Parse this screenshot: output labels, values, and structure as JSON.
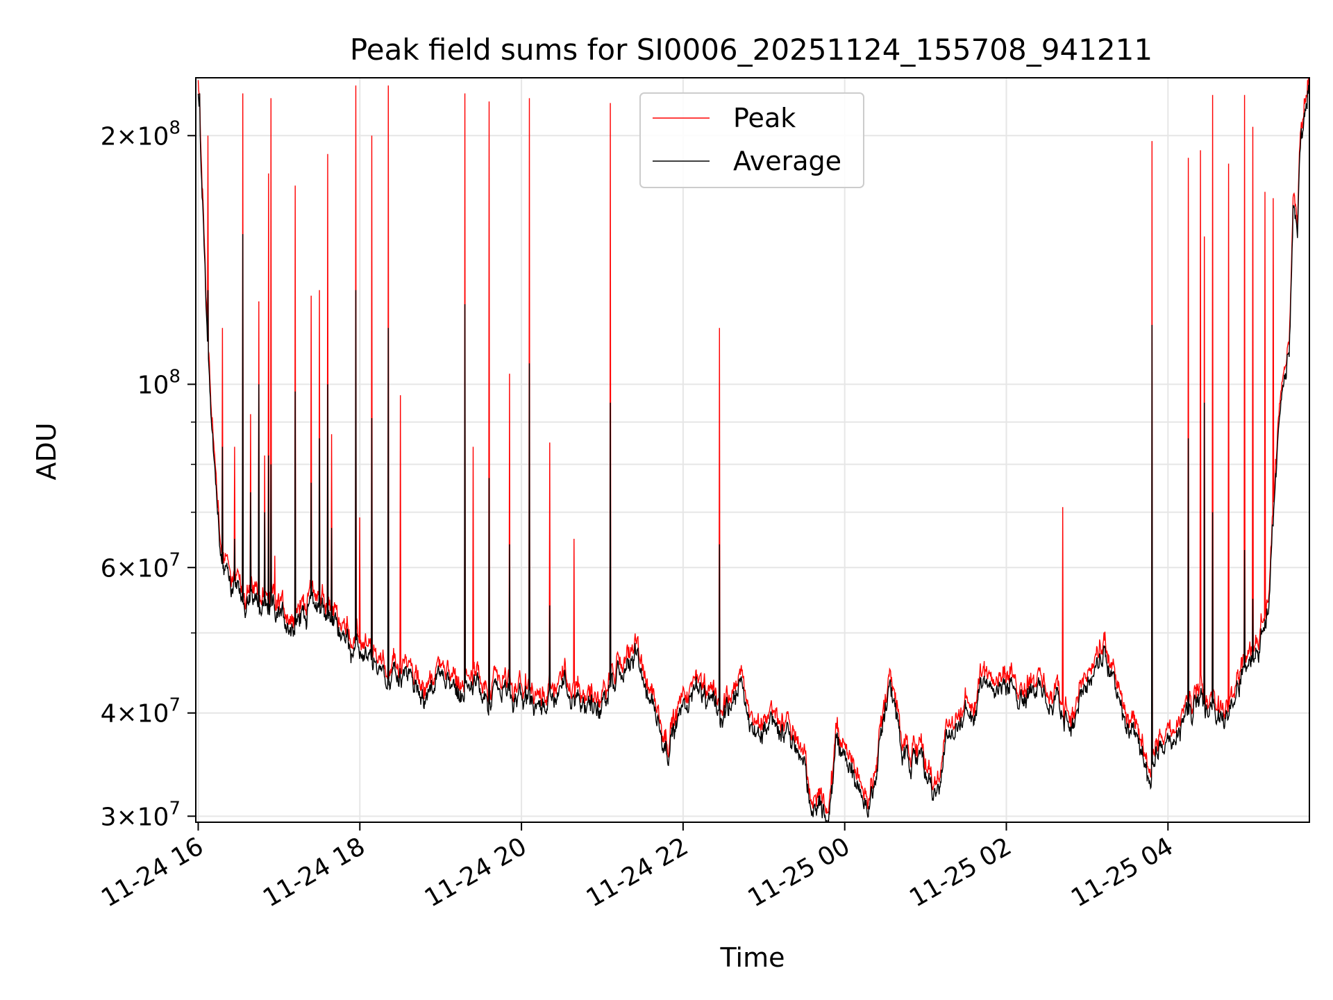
{
  "chart_data": {
    "type": "line",
    "title": "Peak field sums for SI0006_20251124_155708_941211",
    "xlabel": "Time",
    "ylabel": "ADU",
    "yscale": "log",
    "ylim": [
      29500000,
      235000000
    ],
    "xlim_hours": [
      -0.03,
      13.75
    ],
    "x_unit": "hours since 11-24 16:00",
    "grid": true,
    "legend_position": "upper center",
    "x_ticks": [
      {
        "hour": 0,
        "label": "11-24 16"
      },
      {
        "hour": 2,
        "label": "11-24 18"
      },
      {
        "hour": 4,
        "label": "11-24 20"
      },
      {
        "hour": 6,
        "label": "11-24 22"
      },
      {
        "hour": 8,
        "label": "11-25 00"
      },
      {
        "hour": 10,
        "label": "11-25 02"
      },
      {
        "hour": 12,
        "label": "11-25 04"
      }
    ],
    "y_ticks": [
      {
        "value": 30000000,
        "mantissa": "3",
        "exponent": "7"
      },
      {
        "value": 40000000,
        "mantissa": "4",
        "exponent": "7"
      },
      {
        "value": 60000000,
        "mantissa": "6",
        "exponent": "7"
      },
      {
        "value": 100000000,
        "mantissa": "",
        "exponent": "8"
      },
      {
        "value": 200000000,
        "mantissa": "2",
        "exponent": "8"
      }
    ],
    "y_minor_ticks": [
      50000000,
      70000000,
      80000000,
      90000000
    ],
    "colors": {
      "peak": "#ff0000",
      "average": "#000000"
    },
    "series": [
      {
        "name": "Peak",
        "color": "#ff0000",
        "baseline": [
          [
            0.0,
            230000000
          ],
          [
            0.05,
            175000000
          ],
          [
            0.12,
            110000000
          ],
          [
            0.2,
            82000000
          ],
          [
            0.3,
            62000000
          ],
          [
            0.5,
            56000000
          ],
          [
            0.8,
            55000000
          ],
          [
            1.0,
            53000000
          ],
          [
            1.2,
            52500000
          ],
          [
            1.4,
            56000000
          ],
          [
            1.6,
            54000000
          ],
          [
            1.8,
            50000000
          ],
          [
            2.0,
            47500000
          ],
          [
            2.3,
            45500000
          ],
          [
            2.6,
            45000000
          ],
          [
            2.8,
            43000000
          ],
          [
            3.0,
            45000000
          ],
          [
            3.3,
            43500000
          ],
          [
            3.6,
            43000000
          ],
          [
            3.9,
            42500000
          ],
          [
            4.2,
            41500000
          ],
          [
            4.5,
            44000000
          ],
          [
            4.8,
            42500000
          ],
          [
            5.0,
            42000000
          ],
          [
            5.2,
            45000000
          ],
          [
            5.4,
            47500000
          ],
          [
            5.6,
            43000000
          ],
          [
            5.8,
            37000000
          ],
          [
            6.0,
            41500000
          ],
          [
            6.2,
            45000000
          ],
          [
            6.3,
            40500000
          ],
          [
            6.5,
            41000000
          ],
          [
            6.7,
            44000000
          ],
          [
            6.9,
            38000000
          ],
          [
            7.1,
            40500000
          ],
          [
            7.3,
            38000000
          ],
          [
            7.5,
            35000000
          ],
          [
            7.6,
            30200000
          ],
          [
            7.7,
            32500000
          ],
          [
            7.8,
            30000000
          ],
          [
            7.9,
            38000000
          ],
          [
            8.0,
            36000000
          ],
          [
            8.1,
            34000000
          ],
          [
            8.3,
            32500000
          ],
          [
            8.4,
            35000000
          ],
          [
            8.55,
            44500000
          ],
          [
            8.7,
            37000000
          ],
          [
            8.8,
            34000000
          ],
          [
            8.95,
            37500000
          ],
          [
            9.1,
            32000000
          ],
          [
            9.3,
            39000000
          ],
          [
            9.5,
            41000000
          ],
          [
            9.6,
            39000000
          ],
          [
            9.7,
            44500000
          ],
          [
            9.8,
            46000000
          ],
          [
            10.0,
            44000000
          ],
          [
            10.3,
            43500000
          ],
          [
            10.6,
            41500000
          ],
          [
            10.8,
            39500000
          ],
          [
            11.0,
            43500000
          ],
          [
            11.2,
            48500000
          ],
          [
            11.4,
            42000000
          ],
          [
            11.6,
            37000000
          ],
          [
            11.75,
            34500000
          ],
          [
            11.9,
            37500000
          ],
          [
            12.1,
            38500000
          ],
          [
            12.3,
            41000000
          ],
          [
            12.5,
            42000000
          ],
          [
            12.7,
            41000000
          ],
          [
            12.9,
            45000000
          ],
          [
            13.1,
            49000000
          ],
          [
            13.25,
            56000000
          ],
          [
            13.3,
            70000000
          ],
          [
            13.4,
            95000000
          ],
          [
            13.5,
            110000000
          ],
          [
            13.55,
            170000000
          ],
          [
            13.6,
            155000000
          ],
          [
            13.65,
            210000000
          ],
          [
            13.75,
            235000000
          ]
        ],
        "spikes": [
          [
            0.02,
            225000000
          ],
          [
            0.12,
            200000000
          ],
          [
            0.3,
            117000000
          ],
          [
            0.45,
            84000000
          ],
          [
            0.55,
            225000000
          ],
          [
            0.65,
            92000000
          ],
          [
            0.75,
            126000000
          ],
          [
            0.82,
            82000000
          ],
          [
            0.87,
            180000000
          ],
          [
            0.9,
            222000000
          ],
          [
            0.95,
            62000000
          ],
          [
            1.2,
            174000000
          ],
          [
            1.4,
            128000000
          ],
          [
            1.5,
            130000000
          ],
          [
            1.6,
            190000000
          ],
          [
            1.65,
            87000000
          ],
          [
            1.95,
            230000000
          ],
          [
            2.0,
            69000000
          ],
          [
            2.15,
            200000000
          ],
          [
            2.35,
            230000000
          ],
          [
            2.5,
            97000000
          ],
          [
            3.3,
            225000000
          ],
          [
            3.4,
            84000000
          ],
          [
            3.6,
            220000000
          ],
          [
            3.85,
            103000000
          ],
          [
            4.1,
            222000000
          ],
          [
            4.35,
            85000000
          ],
          [
            4.65,
            65000000
          ],
          [
            5.1,
            219000000
          ],
          [
            6.45,
            117000000
          ],
          [
            10.7,
            71000000
          ],
          [
            11.8,
            197000000
          ],
          [
            12.25,
            188000000
          ],
          [
            12.4,
            192000000
          ],
          [
            12.45,
            151000000
          ],
          [
            12.55,
            224000000
          ],
          [
            12.75,
            185000000
          ],
          [
            12.95,
            224000000
          ],
          [
            13.05,
            205000000
          ],
          [
            13.2,
            171000000
          ],
          [
            13.3,
            168000000
          ]
        ]
      },
      {
        "name": "Average",
        "color": "#000000",
        "spikes": [
          [
            0.02,
            225000000
          ],
          [
            0.12,
            130000000
          ],
          [
            0.3,
            84000000
          ],
          [
            0.45,
            65000000
          ],
          [
            0.55,
            152000000
          ],
          [
            0.65,
            74000000
          ],
          [
            0.75,
            100000000
          ],
          [
            0.82,
            70000000
          ],
          [
            0.87,
            82000000
          ],
          [
            0.9,
            80000000
          ],
          [
            1.2,
            98000000
          ],
          [
            1.4,
            76000000
          ],
          [
            1.5,
            86000000
          ],
          [
            1.6,
            100000000
          ],
          [
            1.65,
            67000000
          ],
          [
            1.95,
            130000000
          ],
          [
            2.15,
            91000000
          ],
          [
            2.35,
            117000000
          ],
          [
            3.3,
            125000000
          ],
          [
            3.6,
            77000000
          ],
          [
            3.85,
            64000000
          ],
          [
            4.1,
            106000000
          ],
          [
            4.35,
            54000000
          ],
          [
            5.1,
            95000000
          ],
          [
            6.45,
            64000000
          ],
          [
            11.8,
            118000000
          ],
          [
            12.25,
            86000000
          ],
          [
            12.45,
            95000000
          ],
          [
            12.55,
            70000000
          ],
          [
            12.95,
            63000000
          ],
          [
            13.05,
            55000000
          ]
        ]
      }
    ]
  }
}
